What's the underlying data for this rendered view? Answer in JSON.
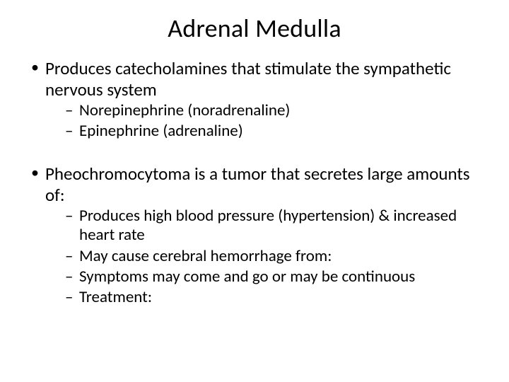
{
  "title": "Adrenal Medulla",
  "bullets": [
    {
      "text": "Produces catecholamines that stimulate the sympathetic nervous system",
      "sub": [
        "Norepinephrine (noradrenaline)",
        "Epinephrine (adrenaline)"
      ]
    },
    {
      "text": "Pheochromocytoma is a tumor that secretes large amounts of:",
      "sub": [
        "Produces high blood pressure (hypertension) & increased heart rate",
        "May cause cerebral hemorrhage from:",
        "Symptoms may come and go or may be continuous",
        "Treatment:"
      ]
    }
  ],
  "style": {
    "title_fontsize": 36,
    "body_fontsize": 25,
    "sub_fontsize": 23,
    "text_color": "#000000",
    "background_color": "#ffffff",
    "slide_width": 720,
    "slide_height": 540
  }
}
